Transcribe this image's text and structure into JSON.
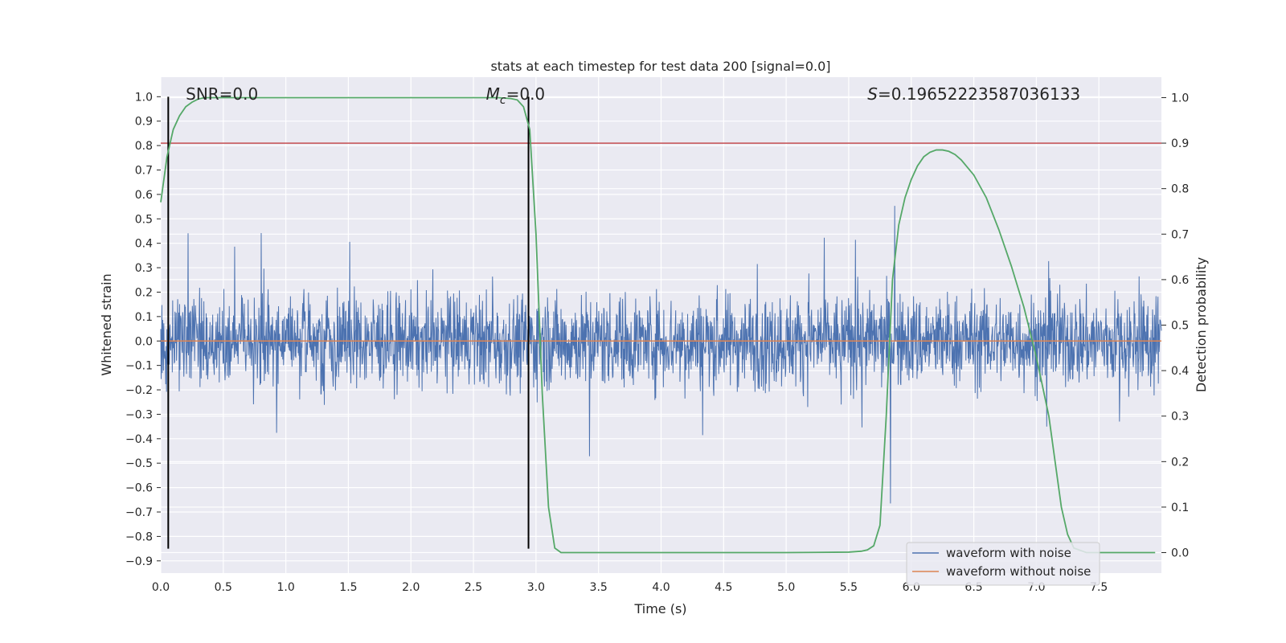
{
  "chart_data": {
    "type": "line",
    "title": "stats at each timestep for test data 200 [signal=0.0]",
    "xlabel": "Time (s)",
    "ylabel": "Whitened strain",
    "y2label": "Detection probability",
    "xlim": [
      0.0,
      8.0
    ],
    "ylim": [
      -0.95,
      1.08
    ],
    "y2lim": [
      -0.045,
      1.045
    ],
    "x_ticks": [
      "0.0",
      "0.5",
      "1.0",
      "1.5",
      "2.0",
      "2.5",
      "3.0",
      "3.5",
      "4.0",
      "4.5",
      "5.0",
      "5.5",
      "6.0",
      "6.5",
      "7.0",
      "7.5"
    ],
    "y_ticks": [
      "1.0",
      "0.9",
      "0.8",
      "0.7",
      "0.6",
      "0.5",
      "0.4",
      "0.3",
      "0.2",
      "0.1",
      "0.0",
      "-0.1",
      "-0.2",
      "-0.3",
      "-0.4",
      "-0.5",
      "-0.6",
      "-0.7",
      "-0.8",
      "-0.9"
    ],
    "y2_ticks": [
      "1.0",
      "0.9",
      "0.8",
      "0.7",
      "0.6",
      "0.5",
      "0.4",
      "0.3",
      "0.2",
      "0.1",
      "0.0"
    ],
    "grid": true,
    "legend_position": "lower-right",
    "colors": {
      "noise": "#4c72b0",
      "clean": "#dd8452",
      "prob": "#55a868",
      "threshold": "#c44e52",
      "vline": "#000000",
      "background": "#eaeaf2",
      "grid": "#ffffff"
    },
    "series": [
      {
        "name": "waveform with noise",
        "axis": "left",
        "envelope": "noise within about -0.76 to 0.86, typical extent about ±0.3"
      },
      {
        "name": "waveform without noise",
        "axis": "left",
        "x": [
          0.0,
          8.0
        ],
        "y": [
          0.0,
          0.0
        ]
      },
      {
        "axis": "right",
        "x": [
          0.0,
          0.05,
          0.1,
          0.15,
          0.2,
          0.25,
          0.3,
          0.35,
          0.4,
          0.5,
          1.0,
          2.0,
          2.5,
          2.7,
          2.8,
          2.85,
          2.9,
          2.95,
          3.0,
          3.05,
          3.1,
          3.15,
          3.2,
          3.3,
          3.5,
          4.0,
          5.0,
          5.5,
          5.6,
          5.65,
          5.7,
          5.75,
          5.8,
          5.85,
          5.9,
          5.95,
          6.0,
          6.05,
          6.1,
          6.15,
          6.2,
          6.25,
          6.3,
          6.35,
          6.4,
          6.5,
          6.6,
          6.7,
          6.8,
          6.9,
          7.0,
          7.1,
          7.15,
          7.2,
          7.25,
          7.3,
          7.4,
          7.5,
          7.6,
          7.7,
          7.8,
          7.95
        ],
        "y": [
          0.77,
          0.87,
          0.93,
          0.96,
          0.98,
          0.99,
          0.997,
          1.0,
          1.0,
          1.0,
          1.0,
          1.0,
          1.0,
          1.0,
          0.998,
          0.995,
          0.98,
          0.93,
          0.7,
          0.35,
          0.1,
          0.01,
          0.0,
          0.0,
          0.0,
          0.0,
          0.0,
          0.001,
          0.003,
          0.006,
          0.015,
          0.06,
          0.3,
          0.6,
          0.72,
          0.78,
          0.82,
          0.85,
          0.87,
          0.88,
          0.885,
          0.885,
          0.882,
          0.875,
          0.863,
          0.83,
          0.78,
          0.71,
          0.63,
          0.54,
          0.43,
          0.3,
          0.2,
          0.1,
          0.04,
          0.01,
          0.0,
          0.0,
          0.0,
          0.0,
          0.0,
          0.0
        ]
      },
      {
        "name": "threshold",
        "axis": "right",
        "value": 0.9
      }
    ],
    "vlines": [
      0.06,
      2.94
    ],
    "annotations": [
      {
        "id": "snr",
        "text": "SNR=0.0",
        "x": 0.2
      },
      {
        "id": "mc",
        "symbol": "M",
        "subscript": "c",
        "suffix": "=0.0",
        "x": 2.6
      },
      {
        "id": "s",
        "symbol": "S",
        "suffix": "=0.19652223587036133",
        "x": 5.65
      }
    ],
    "legend": [
      "waveform with noise",
      "waveform without noise"
    ]
  }
}
